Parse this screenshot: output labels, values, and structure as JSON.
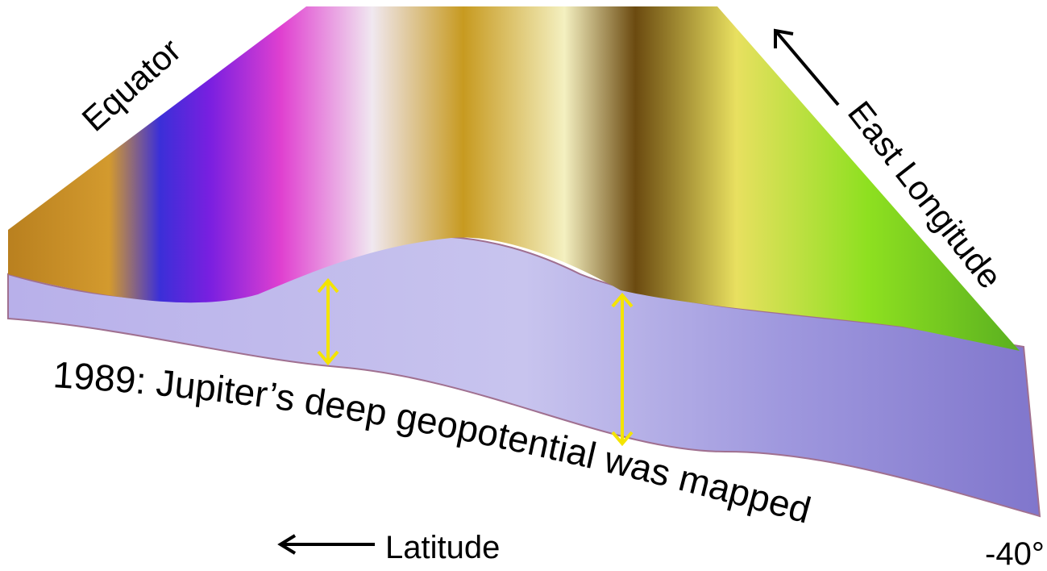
{
  "labels": {
    "equator": "Equator",
    "east_longitude": "East Longitude",
    "caption": "1989: Jupiter’s deep geopotential was mapped",
    "latitude": "Latitude",
    "corner": "-40°"
  }
}
